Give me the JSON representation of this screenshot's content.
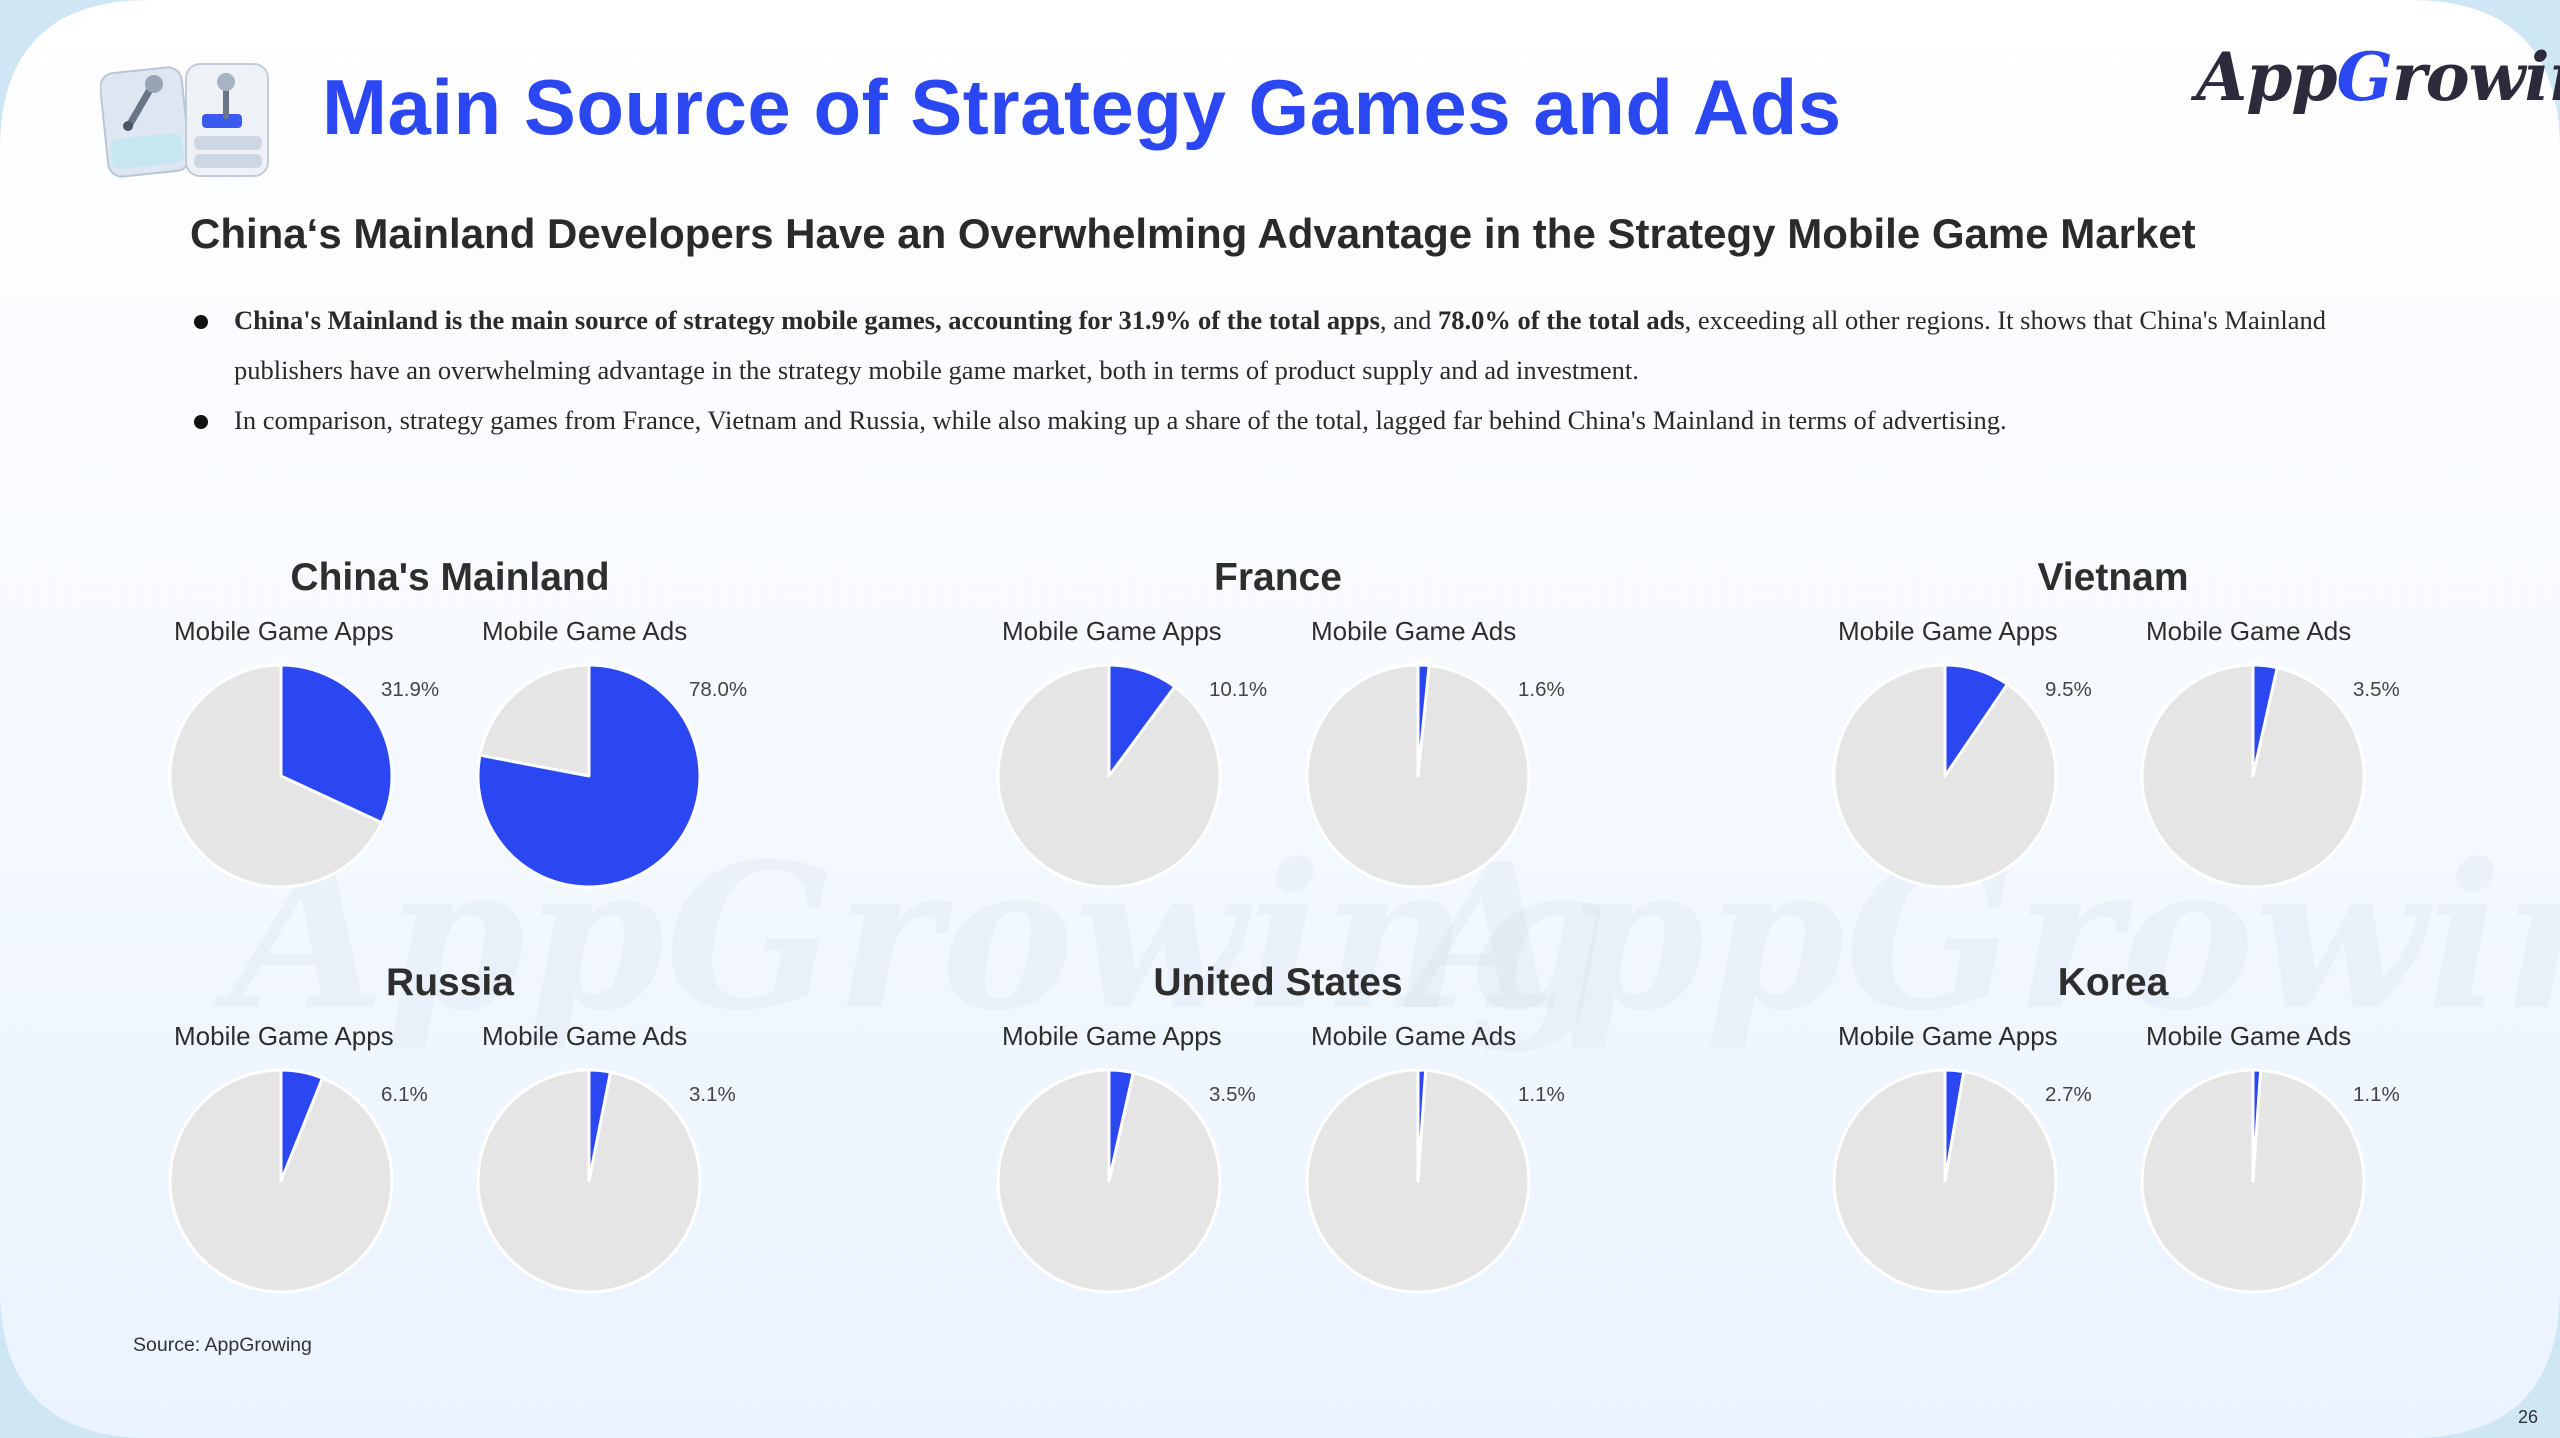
{
  "header": {
    "title": "Main Source of Strategy Games and Ads",
    "logo_prefix": "App",
    "logo_accent": "G",
    "logo_suffix": "rowing",
    "watermark_text": "AppGrowing"
  },
  "subtitle": "China‘s Mainland Developers Have an Overwhelming Advantage in the Strategy Mobile Game Market",
  "bullets": [
    {
      "bold1": "China's Mainland is the main source of strategy mobile games, accounting for 31.9% of the total apps",
      "text1": ", and ",
      "bold2": "78.0% of the total ads",
      "text2": ", exceeding all other regions. It shows that China's Mainland publishers have an overwhelming advantage in the strategy mobile game market, both in terms of product supply and ad investment."
    },
    {
      "text": "In comparison, strategy games from France, Vietnam and Russia, while also making up a share of the total, lagged far behind China's Mainland in terms of advertising."
    }
  ],
  "chart_data": {
    "type": "pie",
    "colors": {
      "share": "#2b47f2",
      "rest": "#e5e5e5"
    },
    "pie_labels": {
      "apps": "Mobile Game Apps",
      "ads": "Mobile Game Ads"
    },
    "regions": [
      {
        "name": "China's Mainland",
        "apps": 31.9,
        "ads": 78.0,
        "apps_label": "31.9%",
        "ads_label": "78.0%"
      },
      {
        "name": "France",
        "apps": 10.1,
        "ads": 1.6,
        "apps_label": "10.1%",
        "ads_label": "1.6%"
      },
      {
        "name": "Vietnam",
        "apps": 9.5,
        "ads": 3.5,
        "apps_label": "9.5%",
        "ads_label": "3.5%"
      },
      {
        "name": "Russia",
        "apps": 6.1,
        "ads": 3.1,
        "apps_label": "6.1%",
        "ads_label": "3.1%"
      },
      {
        "name": "United States",
        "apps": 3.5,
        "ads": 1.1,
        "apps_label": "3.5%",
        "ads_label": "1.1%"
      },
      {
        "name": "Korea",
        "apps": 2.7,
        "ads": 1.1,
        "apps_label": "2.7%",
        "ads_label": "1.1%"
      }
    ]
  },
  "footer": {
    "source": "Source: AppGrowing",
    "page_number": "26"
  }
}
